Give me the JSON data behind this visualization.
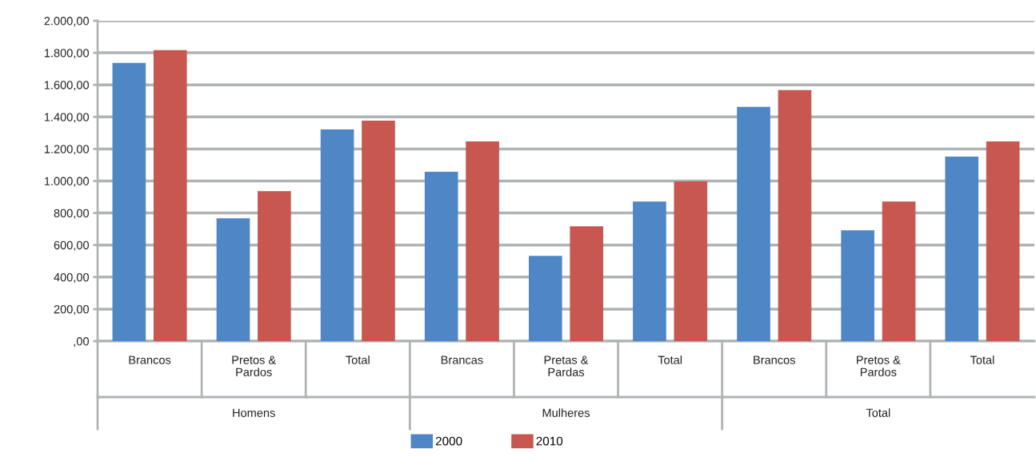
{
  "chart_data": {
    "type": "bar",
    "categories": [
      "Brancos",
      "Pretos &\nPardos",
      "Total",
      "Brancas",
      "Pretas &\nPardas",
      "Total",
      "Brancos",
      "Pretos &\nPardos",
      "Total"
    ],
    "series": [
      {
        "name": "2000",
        "color": "#4f86c6",
        "values": [
          1737,
          767,
          1322,
          1057,
          532,
          872,
          1462,
          692,
          1152
        ]
      },
      {
        "name": "2010",
        "color": "#c8574f",
        "values": [
          1817,
          937,
          1377,
          1247,
          717,
          997,
          1567,
          872,
          1247
        ]
      }
    ],
    "annotations": [
      "Homens",
      "Mulheres",
      "Total"
    ],
    "ylim": [
      0,
      2000
    ],
    "yticks": [
      {
        "value": 0,
        "label": ",00"
      },
      {
        "value": 200,
        "label": "200,00"
      },
      {
        "value": 400,
        "label": "400,00"
      },
      {
        "value": 600,
        "label": "600,00"
      },
      {
        "value": 800,
        "label": "800,00"
      },
      {
        "value": 1000,
        "label": "1.000,00"
      },
      {
        "value": 1200,
        "label": "1.200,00"
      },
      {
        "value": 1400,
        "label": "1.400,00"
      },
      {
        "value": 1600,
        "label": "1.600,00"
      },
      {
        "value": 1800,
        "label": "1.800,00"
      },
      {
        "value": 2000,
        "label": "2.000,00"
      }
    ],
    "grid": "y",
    "legend": "bottom"
  }
}
